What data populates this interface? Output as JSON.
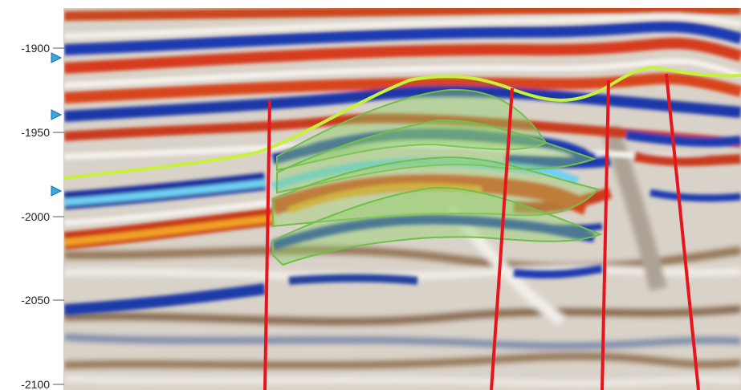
{
  "depth_axis": {
    "ticks": [
      "-1900",
      "-1950",
      "-2000",
      "-2050",
      "-2100"
    ],
    "marker_icon": "triangle-marker-icon"
  },
  "colors": {
    "horizon": "#c6f23a",
    "fault": "#e8141c",
    "geobody_fill": "#8fd06a",
    "geobody_outline": "#6fbf4a",
    "peak_red": "#d2321c",
    "trough_blue": "#1e3fb4",
    "marker": "#38a8e0"
  }
}
